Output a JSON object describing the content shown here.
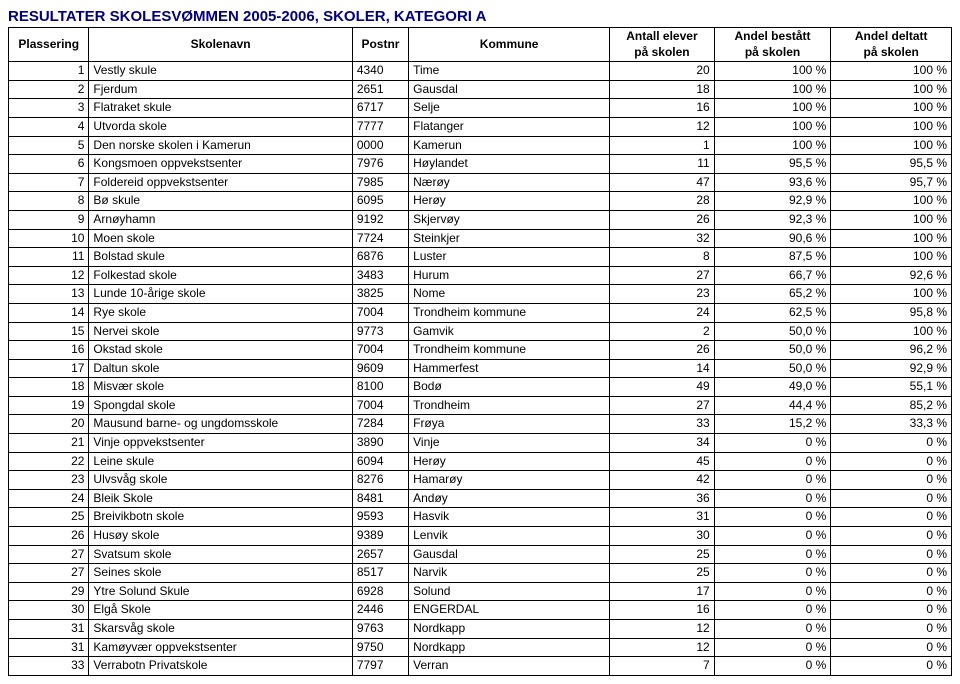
{
  "title": {
    "text": "RESULTATER SKOLESVØMMEN 2005-2006, SKOLER, KATEGORI A",
    "color": "#000080"
  },
  "table": {
    "columns": [
      {
        "label": "Plassering",
        "align": "center"
      },
      {
        "label": "Skolenavn",
        "align": "center"
      },
      {
        "label": "Postnr",
        "align": "center"
      },
      {
        "label": "Kommune",
        "align": "center"
      },
      {
        "label": "Antall elever på skolen",
        "align": "center"
      },
      {
        "label": "Andel bestått på skolen",
        "align": "center"
      },
      {
        "label": "Andel deltatt på skolen",
        "align": "center"
      }
    ],
    "rows": [
      [
        "1",
        "Vestly skule",
        "4340",
        "Time",
        "20",
        "100 %",
        "100 %"
      ],
      [
        "2",
        "Fjerdum",
        "2651",
        "Gausdal",
        "18",
        "100 %",
        "100 %"
      ],
      [
        "3",
        "Flatraket skule",
        "6717",
        "Selje",
        "16",
        "100 %",
        "100 %"
      ],
      [
        "4",
        "Utvorda skole",
        "7777",
        "Flatanger",
        "12",
        "100 %",
        "100 %"
      ],
      [
        "5",
        "Den norske skolen i Kamerun",
        "0000",
        "Kamerun",
        "1",
        "100 %",
        "100 %"
      ],
      [
        "6",
        "Kongsmoen oppvekstsenter",
        "7976",
        "Høylandet",
        "11",
        "95,5 %",
        "95,5 %"
      ],
      [
        "7",
        "Foldereid oppvekstsenter",
        "7985",
        "Nærøy",
        "47",
        "93,6 %",
        "95,7 %"
      ],
      [
        "8",
        "Bø skule",
        "6095",
        "Herøy",
        "28",
        "92,9 %",
        "100 %"
      ],
      [
        "9",
        "Arnøyhamn",
        "9192",
        "Skjervøy",
        "26",
        "92,3 %",
        "100 %"
      ],
      [
        "10",
        "Moen skole",
        "7724",
        "Steinkjer",
        "32",
        "90,6 %",
        "100 %"
      ],
      [
        "11",
        "Bolstad skule",
        "6876",
        "Luster",
        "8",
        "87,5 %",
        "100 %"
      ],
      [
        "12",
        "Folkestad skole",
        "3483",
        "Hurum",
        "27",
        "66,7 %",
        "92,6 %"
      ],
      [
        "13",
        "Lunde 10-årige skole",
        "3825",
        "Nome",
        "23",
        "65,2 %",
        "100 %"
      ],
      [
        "14",
        "Rye skole",
        "7004",
        "Trondheim kommune",
        "24",
        "62,5 %",
        "95,8 %"
      ],
      [
        "15",
        "Nervei skole",
        "9773",
        "Gamvik",
        "2",
        "50,0 %",
        "100 %"
      ],
      [
        "16",
        "Okstad skole",
        "7004",
        "Trondheim kommune",
        "26",
        "50,0 %",
        "96,2 %"
      ],
      [
        "17",
        "Daltun skole",
        "9609",
        "Hammerfest",
        "14",
        "50,0 %",
        "92,9 %"
      ],
      [
        "18",
        "Misvær skole",
        "8100",
        "Bodø",
        "49",
        "49,0 %",
        "55,1 %"
      ],
      [
        "19",
        "Spongdal skole",
        "7004",
        "Trondheim",
        "27",
        "44,4 %",
        "85,2 %"
      ],
      [
        "20",
        "Mausund barne- og ungdomsskole",
        "7284",
        "Frøya",
        "33",
        "15,2 %",
        "33,3 %"
      ],
      [
        "21",
        "Vinje oppvekstsenter",
        "3890",
        "Vinje",
        "34",
        "0 %",
        "0 %"
      ],
      [
        "22",
        "Leine skule",
        "6094",
        "Herøy",
        "45",
        "0 %",
        "0 %"
      ],
      [
        "23",
        "Ulvsvåg skole",
        "8276",
        "Hamarøy",
        "42",
        "0 %",
        "0 %"
      ],
      [
        "24",
        "Bleik Skole",
        "8481",
        "Andøy",
        "36",
        "0 %",
        "0 %"
      ],
      [
        "25",
        "Breivikbotn skole",
        "9593",
        "Hasvik",
        "31",
        "0 %",
        "0 %"
      ],
      [
        "26",
        "Husøy skole",
        "9389",
        "Lenvik",
        "30",
        "0 %",
        "0 %"
      ],
      [
        "27",
        "Svatsum skole",
        "2657",
        "Gausdal",
        "25",
        "0 %",
        "0 %"
      ],
      [
        "27",
        "Seines skole",
        "8517",
        "Narvik",
        "25",
        "0 %",
        "0 %"
      ],
      [
        "29",
        "Ytre Solund Skule",
        "6928",
        "Solund",
        "17",
        "0 %",
        "0 %"
      ],
      [
        "30",
        "Elgå Skole",
        "2446",
        "ENGERDAL",
        "16",
        "0 %",
        "0 %"
      ],
      [
        "31",
        "Skarsvåg skole",
        "9763",
        "Nordkapp",
        "12",
        "0 %",
        "0 %"
      ],
      [
        "31",
        "Kamøyvær oppvekstsenter",
        "9750",
        "Nordkapp",
        "12",
        "0 %",
        "0 %"
      ],
      [
        "33",
        "Verrabotn Privatskole",
        "7797",
        "Verran",
        "7",
        "0 %",
        "0 %"
      ]
    ],
    "cellAlign": [
      "right",
      "left",
      "left",
      "left",
      "right",
      "right",
      "right"
    ]
  }
}
